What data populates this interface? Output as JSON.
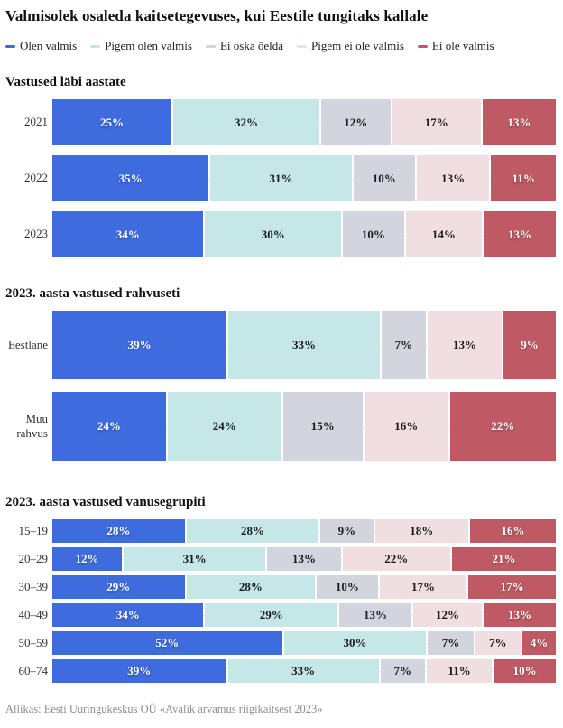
{
  "title": "Valmisolek osaleda kaitsetegevuses, kui Eestile tungitaks kallale",
  "source": "Allikas: Eesti Uuringukeskus OÜ «Avalik arvamus riigikaitsest 2023»",
  "legend": [
    {
      "label": "Olen valmis",
      "color": "#3E6CDE"
    },
    {
      "label": "Pigem olen valmis",
      "color": "#C6E7E8"
    },
    {
      "label": "Ei oska öelda",
      "color": "#D3D5DE"
    },
    {
      "label": "Pigem ei ole valmis",
      "color": "#F0DEE0"
    },
    {
      "label": "Ei ole valmis",
      "color": "#BF5A64"
    }
  ],
  "chart_data": [
    {
      "type": "bar",
      "stacked": true,
      "orientation": "horizontal",
      "unit": "%",
      "title": "Vastused läbi aastate",
      "categories": [
        "2021",
        "2022",
        "2023"
      ],
      "series": [
        {
          "name": "Olen valmis",
          "values": [
            25,
            35,
            34
          ]
        },
        {
          "name": "Pigem olen valmis",
          "values": [
            32,
            31,
            30
          ]
        },
        {
          "name": "Ei oska öelda",
          "values": [
            12,
            10,
            10
          ]
        },
        {
          "name": "Pigem ei ole valmis",
          "values": [
            17,
            13,
            14
          ]
        },
        {
          "name": "Ei ole valmis",
          "values": [
            13,
            11,
            13
          ]
        }
      ]
    },
    {
      "type": "bar",
      "stacked": true,
      "orientation": "horizontal",
      "unit": "%",
      "title": "2023. aasta vastused rahvuseti",
      "categories": [
        "Eestlane",
        "Muu rahvus"
      ],
      "series": [
        {
          "name": "Olen valmis",
          "values": [
            39,
            24
          ]
        },
        {
          "name": "Pigem olen valmis",
          "values": [
            33,
            24
          ]
        },
        {
          "name": "Ei oska öelda",
          "values": [
            7,
            15
          ]
        },
        {
          "name": "Pigem ei ole valmis",
          "values": [
            13,
            16
          ]
        },
        {
          "name": "Ei ole valmis",
          "values": [
            9,
            22
          ]
        }
      ]
    },
    {
      "type": "bar",
      "stacked": true,
      "orientation": "horizontal",
      "unit": "%",
      "title": "2023. aasta vastused vanusegrupiti",
      "categories": [
        "15–19",
        "20–29",
        "30–39",
        "40–49",
        "50–59",
        "60–74"
      ],
      "series": [
        {
          "name": "Olen valmis",
          "values": [
            28,
            12,
            29,
            34,
            52,
            39
          ]
        },
        {
          "name": "Pigem olen valmis",
          "values": [
            28,
            31,
            28,
            29,
            30,
            33
          ]
        },
        {
          "name": "Ei oska öelda",
          "values": [
            9,
            13,
            10,
            13,
            7,
            7
          ]
        },
        {
          "name": "Pigem ei ole valmis",
          "values": [
            18,
            22,
            17,
            12,
            7,
            11
          ]
        },
        {
          "name": "Ei ole valmis",
          "values": [
            16,
            21,
            17,
            13,
            4,
            10
          ]
        }
      ]
    }
  ]
}
